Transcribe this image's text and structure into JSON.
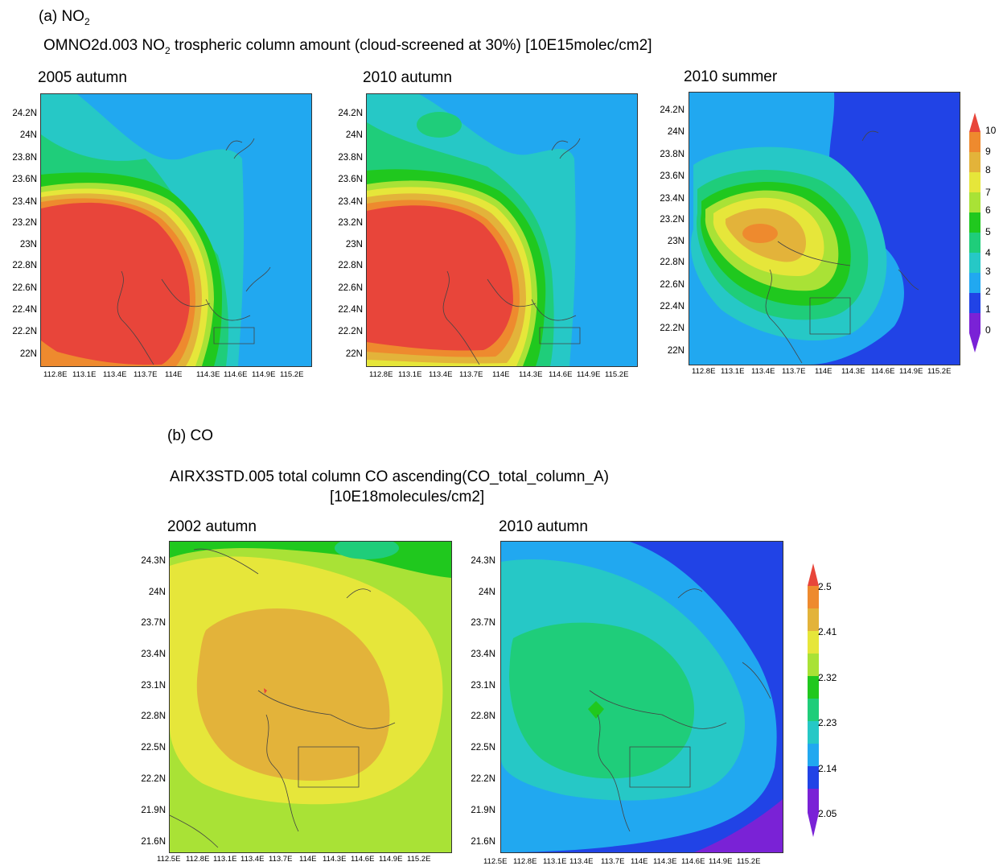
{
  "sections": {
    "a": {
      "label_prefix": "(a) NO",
      "label_sub": "2",
      "title_pre": "OMNO2d.003 NO",
      "title_sub": "2",
      "title_post": " trospheric column amount (cloud-screened at 30%) [10E15molec/cm2]",
      "panels": [
        {
          "title": "2005 autumn",
          "y_ticks": [
            "24.2N",
            "24N",
            "23.8N",
            "23.6N",
            "23.4N",
            "23.2N",
            "23N",
            "22.8N",
            "22.6N",
            "22.4N",
            "22.2N",
            "22N"
          ],
          "x_ticks": [
            "112.8E",
            "113.1E",
            "113.4E",
            "113.7E",
            "114E",
            "114.3E",
            "114.6E",
            "114.9E",
            "115.2E"
          ]
        },
        {
          "title": "2010 autumn",
          "y_ticks": [
            "24.2N",
            "24N",
            "23.8N",
            "23.6N",
            "23.4N",
            "23.2N",
            "23N",
            "22.8N",
            "22.6N",
            "22.4N",
            "22.2N",
            "22N"
          ],
          "x_ticks": [
            "112.8E",
            "113.1E",
            "113.4E",
            "113.7E",
            "114E",
            "114.3E",
            "114.6E",
            "114.9E",
            "115.2E"
          ]
        },
        {
          "title": "2010 summer",
          "y_ticks": [
            "24.2N",
            "24N",
            "23.8N",
            "23.6N",
            "23.4N",
            "23.2N",
            "23N",
            "22.8N",
            "22.6N",
            "22.4N",
            "22.2N",
            "22N"
          ],
          "x_ticks": [
            "112.8E",
            "113.1E",
            "113.4E",
            "113.7E",
            "114E",
            "114.3E",
            "114.6E",
            "114.9E",
            "115.2E"
          ]
        }
      ],
      "colorbar": {
        "ticks": [
          "10",
          "9",
          "8",
          "7",
          "6",
          "5",
          "4",
          "3",
          "2",
          "1",
          "0"
        ],
        "colors": [
          "#e8453a",
          "#ee8a2e",
          "#e3b33a",
          "#e6e63a",
          "#a9e236",
          "#20c81e",
          "#1fcd7a",
          "#26c8c6",
          "#21a8f0",
          "#2143e6",
          "#7a22d6"
        ]
      }
    },
    "b": {
      "label": "(b) CO",
      "title_line1": "AIRX3STD.005 total column CO ascending(CO_total_column_A)",
      "title_line2": "[10E18molecules/cm2]",
      "panels": [
        {
          "title": "2002 autumn",
          "y_ticks": [
            "24.3N",
            "24N",
            "23.7N",
            "23.4N",
            "23.1N",
            "22.8N",
            "22.5N",
            "22.2N",
            "21.9N",
            "21.6N"
          ],
          "x_ticks": [
            "112.5E",
            "112.8E",
            "113.1E",
            "113.4E",
            "113.7E",
            "114E",
            "114.3E",
            "114.6E",
            "114.9E",
            "115.2E"
          ]
        },
        {
          "title": "2010 autumn",
          "y_ticks": [
            "24.3N",
            "24N",
            "23.7N",
            "23.4N",
            "23.1N",
            "22.8N",
            "22.5N",
            "22.2N",
            "21.9N",
            "21.6N"
          ],
          "x_ticks": [
            "112.5E",
            "112.8E",
            "113.1E",
            "113.4E",
            "113.7E",
            "114E",
            "114.3E",
            "114.6E",
            "114.9E",
            "115.2E"
          ]
        }
      ],
      "colorbar": {
        "ticks": [
          "2.5",
          "2.41",
          "2.32",
          "2.23",
          "2.14",
          "2.05"
        ],
        "colors": [
          "#e8453a",
          "#ee8a2e",
          "#e3b33a",
          "#e6e63a",
          "#a9e236",
          "#20c81e",
          "#1fcd7a",
          "#26c8c6",
          "#21a8f0",
          "#2143e6",
          "#7a22d6"
        ]
      }
    }
  }
}
